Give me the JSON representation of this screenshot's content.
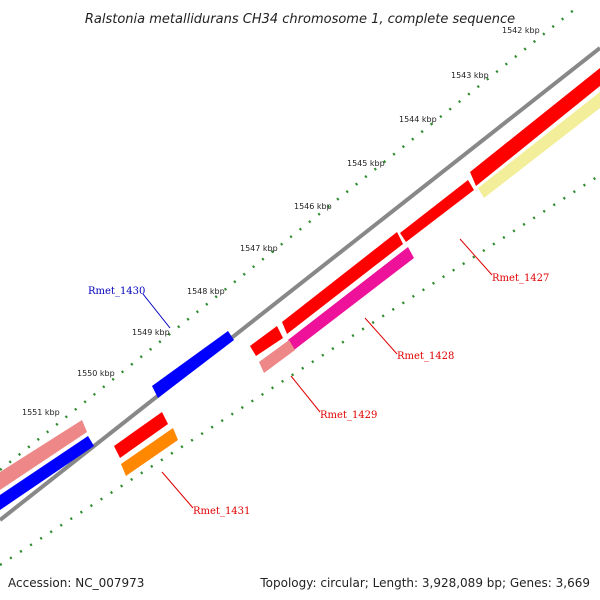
{
  "title": "Ralstonia metallidurans CH34 chromosome 1, complete sequence",
  "footer": {
    "accession": "Accession: NC_007973",
    "summary": "Topology: circular; Length: 3,928,089 bp; Genes: 3,669"
  },
  "ticks": [
    "1542 kbp",
    "1543 kbp",
    "1544 kbp",
    "1545 kbp",
    "1546 kbp",
    "1547 kbp",
    "1548 kbp",
    "1549 kbp",
    "1550 kbp",
    "1551 kbp"
  ],
  "genes": [
    {
      "name": "Rmet_1427",
      "color": "#e00000"
    },
    {
      "name": "Rmet_1428",
      "color": "#e00000"
    },
    {
      "name": "Rmet_1429",
      "color": "#e00000"
    },
    {
      "name": "Rmet_1430",
      "color": "#0000bb"
    },
    {
      "name": "Rmet_1431",
      "color": "#e00000"
    }
  ],
  "colors": {
    "backbone": "#888888",
    "tick": "#2e8b2e",
    "cds_red": "#ff0000",
    "cds_blue": "#0000ff",
    "cds_pink": "#ee1199",
    "cds_salmon": "#ee8888",
    "cds_orange": "#ff8800",
    "cds_yellow": "#f2ee99"
  }
}
